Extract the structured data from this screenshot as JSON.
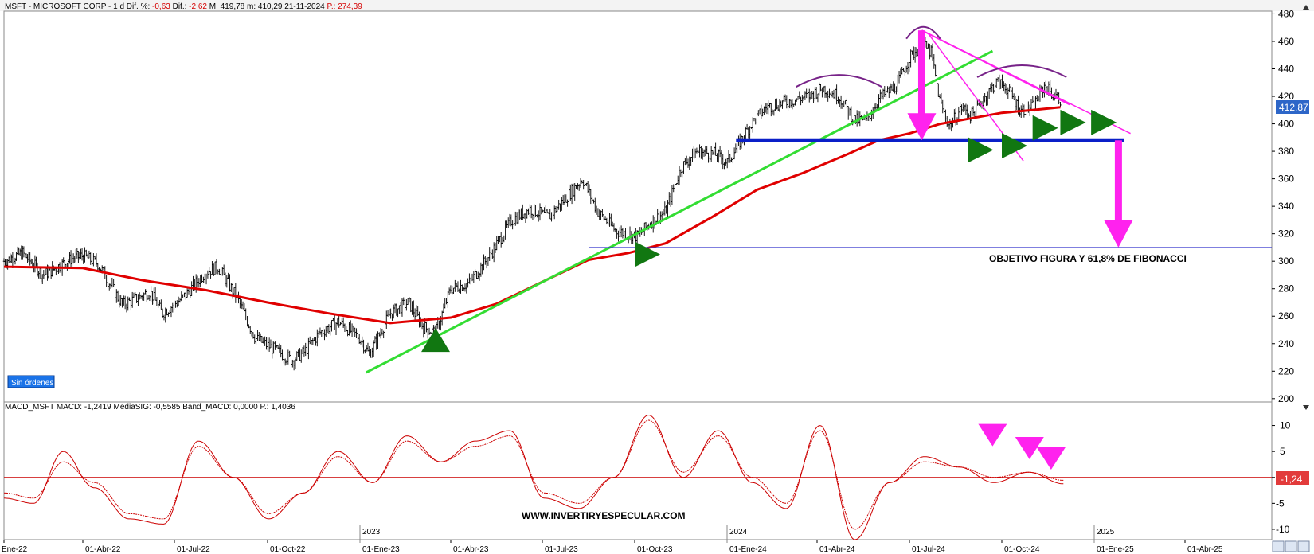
{
  "header": {
    "symbol": "MSFT - MICROSOFT CORP - 1 d",
    "dif_pct_label": "Dif. %:",
    "dif_pct_value": "-0,63",
    "dif_label": "Dif.:",
    "dif_value": "-2,62",
    "max": "M: 419,78",
    "min": "m: 410,29",
    "date": "21-11-2024",
    "p_value": "P.: 274,39"
  },
  "macd_header": {
    "name": "MACD_MSFT",
    "text": "MACD: -1,2419  MediaSIG: -0,5585  Band_MACD: 0,0000  P.: 1,4036"
  },
  "badges": {
    "orders": "Sin órdenes",
    "price": "412,87",
    "macd": "-1,24"
  },
  "annotations": {
    "target": "OBJETIVO FIGURA Y 61,8% DE FIBONACCI",
    "watermark": "WWW.INVERTIRYESPECULAR.COM"
  },
  "x_axis": {
    "labels": [
      "Ene-22",
      "01-Abr-22",
      "01-Jul-22",
      "01-Oct-22",
      "01-Ene-23",
      "01-Abr-23",
      "01-Jul-23",
      "01-Oct-23",
      "01-Ene-24",
      "01-Abr-24",
      "01-Jul-24",
      "01-Oct-24",
      "01-Ene-25",
      "01-Abr-25"
    ],
    "years": [
      "2023",
      "2024",
      "2025"
    ]
  },
  "colors": {
    "price_bars": "#000000",
    "ma": "#e00000",
    "trend_up": "#33dd33",
    "support": "#0a1fc8",
    "target_line": "#3333cc",
    "magenta": "#ff22ee",
    "arc": "#772288",
    "green_marker": "#117711",
    "macd": "#cc0000"
  },
  "chart_data": [
    {
      "type": "line",
      "title": "MSFT - MICROSOFT CORP - 1 d",
      "y_ticks": [
        200,
        220,
        240,
        260,
        280,
        300,
        320,
        340,
        360,
        380,
        400,
        420,
        440,
        460,
        480
      ],
      "ylim": [
        197,
        482
      ],
      "series": [
        {
          "x": [
            "Ene-22",
            "01-Abr-22",
            "01-Jul-22",
            "01-Oct-22",
            "01-Ene-23",
            "01-Abr-23",
            "01-Jul-23",
            "01-Oct-23",
            "01-Ene-24",
            "01-Abr-24",
            "01-Jul-24",
            "01-Oct-24",
            "21-11-2024"
          ],
          "values": [
            300,
            305,
            260,
            240,
            230,
            290,
            340,
            320,
            380,
            420,
            460,
            420,
            412.87
          ]
        },
        {
          "x": [
            "Ene-22",
            "01-Abr-22",
            "01-Jul-22",
            "01-Oct-22",
            "01-Ene-23",
            "01-Abr-23",
            "01-Jul-23",
            "01-Oct-23",
            "01-Ene-24",
            "01-Abr-24",
            "01-Jul-24",
            "01-Oct-24",
            "21-11-2024"
          ],
          "values": [
            296,
            296,
            279,
            268,
            255,
            272,
            295,
            308,
            345,
            378,
            392,
            405,
            412
          ]
        }
      ],
      "support_level": 388,
      "target_level": 310
    },
    {
      "type": "line",
      "title": "MACD_MSFT",
      "y_ticks": [
        10,
        5,
        0,
        -5,
        -10
      ],
      "ylim": [
        -12,
        13
      ],
      "last_value": -1.24,
      "series": [
        {
          "values": [
            -4,
            -5,
            5,
            -2,
            -8,
            -9,
            7,
            0,
            -8,
            -3,
            5,
            -1,
            8,
            3,
            7,
            9,
            -4,
            -6,
            0,
            12,
            0,
            9,
            -1,
            -6,
            10,
            -12,
            -1,
            4,
            2,
            -1,
            1,
            -1.24
          ]
        },
        {
          "values": [
            -3,
            -4,
            3,
            -1,
            -7,
            -8,
            6,
            0,
            -7,
            -3,
            4,
            -1,
            7,
            3,
            6,
            8,
            -3,
            -5,
            0,
            11,
            1,
            8,
            0,
            -5,
            9,
            -10,
            -1,
            3,
            2,
            0,
            1,
            -0.56
          ]
        }
      ]
    }
  ]
}
